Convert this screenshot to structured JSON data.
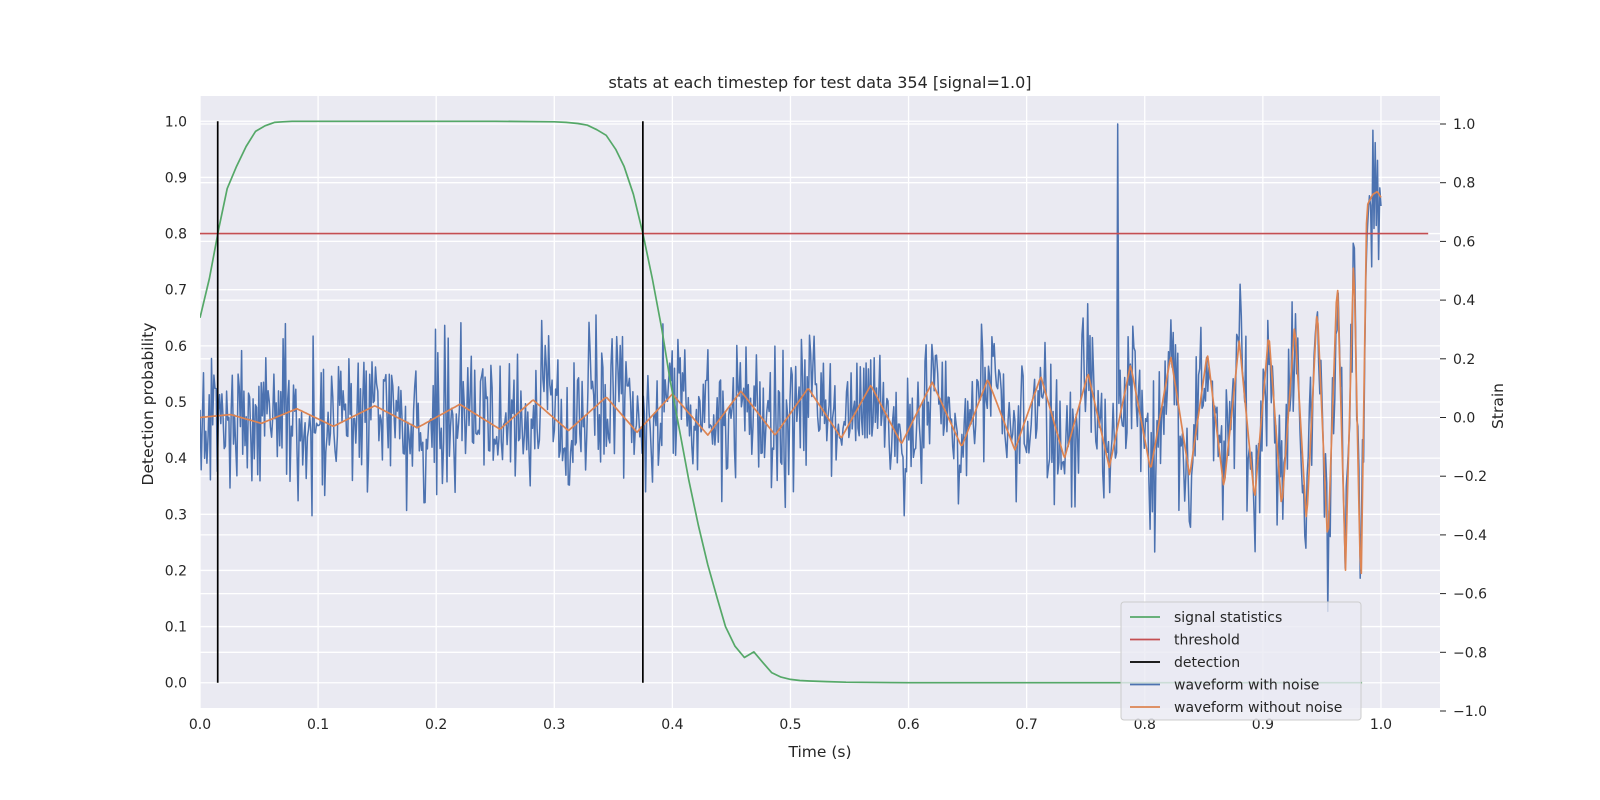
{
  "chart_data": {
    "type": "line",
    "title": "stats at each timestep for test data 354 [signal=1.0]",
    "xlabel": "Time (s)",
    "ylabel": "Detection probability",
    "y2label": "Strain",
    "xlim": [
      0.0,
      1.05
    ],
    "ylim": [
      -0.045,
      1.045
    ],
    "y2lim": [
      -1.0,
      1.0
    ],
    "xticks": [
      "0.0",
      "0.1",
      "0.2",
      "0.3",
      "0.4",
      "0.5",
      "0.6",
      "0.7",
      "0.8",
      "0.9",
      "1.0"
    ],
    "yticks": [
      "0.0",
      "0.1",
      "0.2",
      "0.3",
      "0.4",
      "0.5",
      "0.6",
      "0.7",
      "0.8",
      "0.9",
      "1.0"
    ],
    "y2ticks": [
      "−1.0",
      "−0.8",
      "−0.6",
      "−0.4",
      "−0.2",
      "0.0",
      "0.2",
      "0.4",
      "0.6",
      "0.8",
      "1.0"
    ],
    "grid": true,
    "legend_position": "bottom-right",
    "colors": {
      "signal_statistics": "#55a868",
      "threshold": "#c44e52",
      "detection": "#000000",
      "waveform_with_noise": "#4c72b0",
      "waveform_without_noise": "#dd8452",
      "plot_background": "#eaeaf2",
      "grid": "#ffffff"
    },
    "series": [
      {
        "name": "signal statistics",
        "axis": "left",
        "x": [
          0.0,
          0.008,
          0.016,
          0.023,
          0.031,
          0.039,
          0.047,
          0.055,
          0.063,
          0.07,
          0.078,
          0.1,
          0.15,
          0.2,
          0.25,
          0.3,
          0.31,
          0.32,
          0.328,
          0.336,
          0.344,
          0.352,
          0.359,
          0.367,
          0.375,
          0.383,
          0.391,
          0.398,
          0.406,
          0.414,
          0.422,
          0.43,
          0.438,
          0.445,
          0.453,
          0.461,
          0.469,
          0.477,
          0.484,
          0.492,
          0.5,
          0.508,
          0.516,
          0.531,
          0.547,
          0.6,
          0.7,
          0.8,
          0.9,
          0.984
        ],
        "y": [
          0.65,
          0.72,
          0.81,
          0.88,
          0.92,
          0.955,
          0.982,
          0.992,
          0.998,
          0.999,
          1.0,
          1.0,
          1.0,
          1.0,
          1.0,
          0.999,
          0.998,
          0.996,
          0.993,
          0.985,
          0.975,
          0.95,
          0.92,
          0.87,
          0.8,
          0.72,
          0.63,
          0.54,
          0.45,
          0.36,
          0.28,
          0.21,
          0.15,
          0.1,
          0.065,
          0.045,
          0.055,
          0.035,
          0.018,
          0.01,
          0.006,
          0.004,
          0.003,
          0.002,
          0.001,
          0.0,
          0.0,
          0.0,
          0.0,
          0.0
        ]
      },
      {
        "name": "threshold",
        "axis": "left",
        "x": [
          0.0,
          1.04
        ],
        "y": [
          0.8,
          0.8
        ]
      },
      {
        "name": "detection",
        "axis": "left",
        "x": [
          0.015,
          0.375
        ],
        "y_range": [
          0.0,
          1.0
        ]
      },
      {
        "name": "waveform with noise",
        "axis": "right",
        "x_range": [
          0.0,
          1.0
        ],
        "samples": 1024,
        "noise_amplitude_approx": 0.28,
        "peak": {
          "x": 0.777,
          "y": 1.0
        }
      },
      {
        "name": "waveform without noise",
        "axis": "right",
        "x": [
          0.0,
          0.026,
          0.052,
          0.082,
          0.113,
          0.148,
          0.184,
          0.22,
          0.254,
          0.282,
          0.312,
          0.344,
          0.37,
          0.4,
          0.43,
          0.458,
          0.487,
          0.515,
          0.543,
          0.568,
          0.594,
          0.62,
          0.645,
          0.667,
          0.69,
          0.712,
          0.732,
          0.752,
          0.77,
          0.788,
          0.805,
          0.822,
          0.838,
          0.853,
          0.867,
          0.88,
          0.893,
          0.905,
          0.916,
          0.927,
          0.937,
          0.946,
          0.955,
          0.963,
          0.97,
          0.977,
          0.983,
          0.988,
          0.993,
          0.997,
          1.0
        ],
        "y": [
          0.0,
          0.01,
          -0.02,
          0.03,
          -0.03,
          0.04,
          -0.035,
          0.045,
          -0.04,
          0.06,
          -0.045,
          0.07,
          -0.05,
          0.08,
          -0.06,
          0.09,
          -0.06,
          0.1,
          -0.07,
          0.11,
          -0.09,
          0.12,
          -0.1,
          0.13,
          -0.11,
          0.14,
          -0.14,
          0.15,
          -0.17,
          0.18,
          -0.18,
          0.21,
          -0.2,
          0.22,
          -0.24,
          0.26,
          -0.28,
          0.29,
          -0.31,
          0.32,
          -0.36,
          0.38,
          -0.44,
          0.48,
          -0.52,
          0.56,
          -0.62,
          0.72,
          0.76,
          0.77,
          0.75
        ]
      }
    ]
  }
}
